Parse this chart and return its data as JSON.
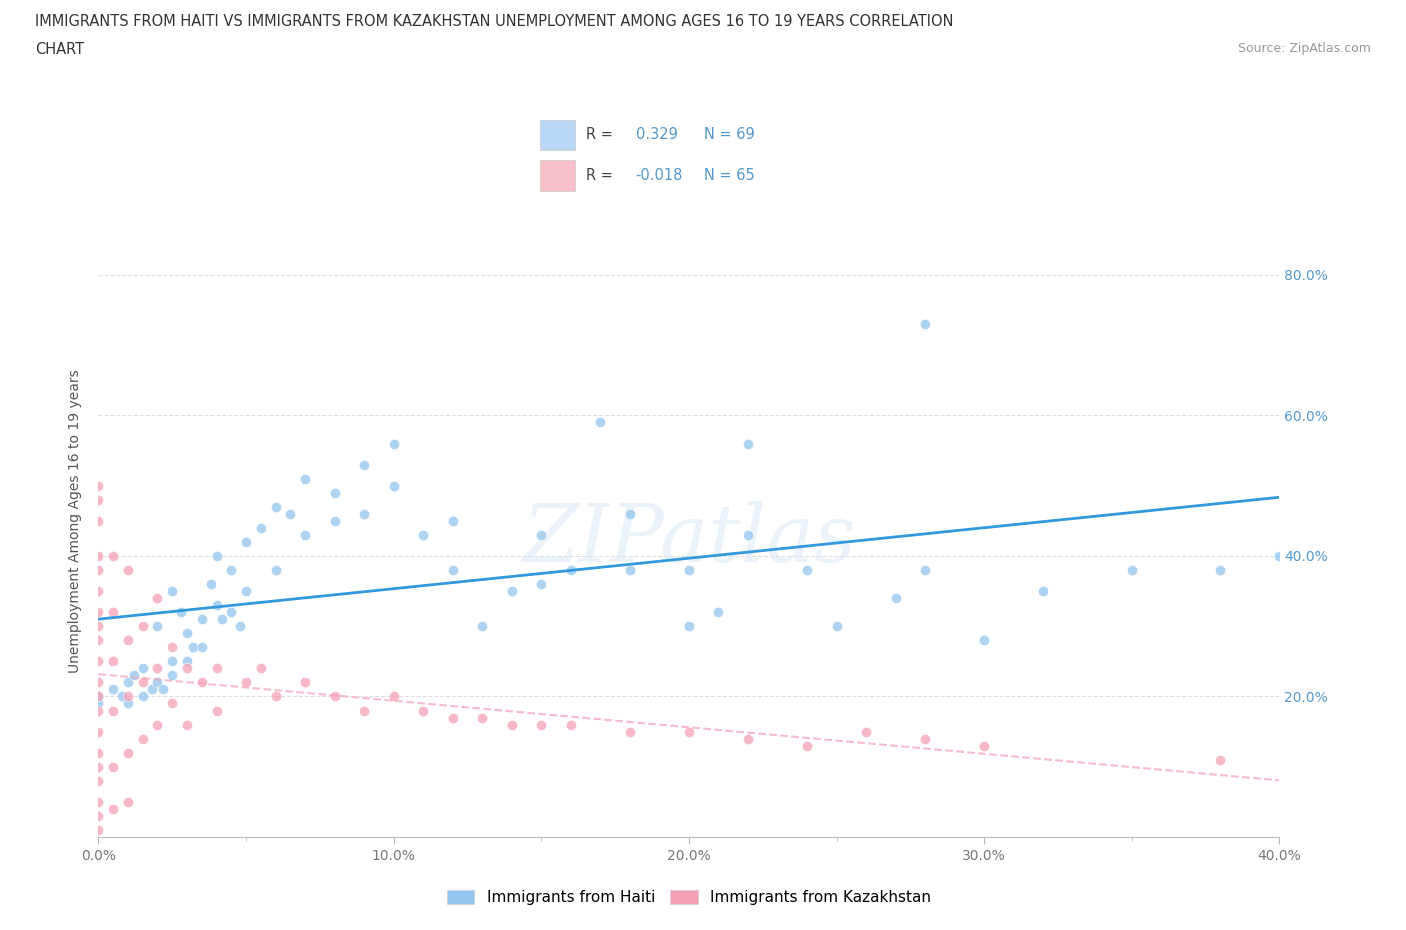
{
  "title_line1": "IMMIGRANTS FROM HAITI VS IMMIGRANTS FROM KAZAKHSTAN UNEMPLOYMENT AMONG AGES 16 TO 19 YEARS CORRELATION",
  "title_line2": "CHART",
  "source_text": "Source: ZipAtlas.com",
  "ylabel": "Unemployment Among Ages 16 to 19 years",
  "xlim": [
    0.0,
    0.4
  ],
  "ylim": [
    0.0,
    0.9
  ],
  "xtick_labels": [
    "0.0%",
    "",
    "10.0%",
    "",
    "20.0%",
    "",
    "30.0%",
    "",
    "40.0%"
  ],
  "xtick_values": [
    0.0,
    0.05,
    0.1,
    0.15,
    0.2,
    0.25,
    0.3,
    0.35,
    0.4
  ],
  "ytick_labels": [
    "20.0%",
    "40.0%",
    "60.0%",
    "80.0%"
  ],
  "ytick_values": [
    0.2,
    0.4,
    0.6,
    0.8
  ],
  "R_haiti": 0.329,
  "N_haiti": 69,
  "R_kazakhstan": -0.018,
  "N_kazakhstan": 65,
  "haiti_color": "#92c5f0",
  "kazakhstan_color": "#f4a0b5",
  "haiti_line_color": "#3399dd",
  "kazakhstan_line_color": "#f4a0b5",
  "background_color": "#ffffff",
  "grid_color": "#dddddd",
  "watermark_text": "ZIPatlas",
  "legend_box_haiti_color": "#b8d8f5",
  "legend_box_kazakhstan_color": "#f9c0cc",
  "right_tick_color": "#5599cc",
  "haiti_scatter": [
    [
      0.0,
      0.2
    ],
    [
      0.0,
      0.19
    ],
    [
      0.005,
      0.21
    ],
    [
      0.008,
      0.2
    ],
    [
      0.01,
      0.22
    ],
    [
      0.01,
      0.19
    ],
    [
      0.012,
      0.23
    ],
    [
      0.015,
      0.24
    ],
    [
      0.015,
      0.2
    ],
    [
      0.018,
      0.21
    ],
    [
      0.02,
      0.3
    ],
    [
      0.02,
      0.22
    ],
    [
      0.022,
      0.21
    ],
    [
      0.025,
      0.35
    ],
    [
      0.025,
      0.25
    ],
    [
      0.025,
      0.23
    ],
    [
      0.028,
      0.32
    ],
    [
      0.03,
      0.29
    ],
    [
      0.03,
      0.25
    ],
    [
      0.032,
      0.27
    ],
    [
      0.035,
      0.31
    ],
    [
      0.035,
      0.27
    ],
    [
      0.038,
      0.36
    ],
    [
      0.04,
      0.4
    ],
    [
      0.04,
      0.33
    ],
    [
      0.042,
      0.31
    ],
    [
      0.045,
      0.38
    ],
    [
      0.045,
      0.32
    ],
    [
      0.048,
      0.3
    ],
    [
      0.05,
      0.42
    ],
    [
      0.05,
      0.35
    ],
    [
      0.055,
      0.44
    ],
    [
      0.06,
      0.47
    ],
    [
      0.06,
      0.38
    ],
    [
      0.065,
      0.46
    ],
    [
      0.07,
      0.51
    ],
    [
      0.07,
      0.43
    ],
    [
      0.08,
      0.49
    ],
    [
      0.08,
      0.45
    ],
    [
      0.09,
      0.53
    ],
    [
      0.09,
      0.46
    ],
    [
      0.1,
      0.56
    ],
    [
      0.1,
      0.5
    ],
    [
      0.11,
      0.43
    ],
    [
      0.12,
      0.45
    ],
    [
      0.12,
      0.38
    ],
    [
      0.13,
      0.3
    ],
    [
      0.14,
      0.35
    ],
    [
      0.15,
      0.43
    ],
    [
      0.15,
      0.36
    ],
    [
      0.16,
      0.38
    ],
    [
      0.17,
      0.59
    ],
    [
      0.18,
      0.46
    ],
    [
      0.18,
      0.38
    ],
    [
      0.2,
      0.38
    ],
    [
      0.2,
      0.3
    ],
    [
      0.21,
      0.32
    ],
    [
      0.22,
      0.56
    ],
    [
      0.22,
      0.43
    ],
    [
      0.24,
      0.38
    ],
    [
      0.25,
      0.3
    ],
    [
      0.27,
      0.34
    ],
    [
      0.28,
      0.73
    ],
    [
      0.28,
      0.38
    ],
    [
      0.3,
      0.28
    ],
    [
      0.32,
      0.35
    ],
    [
      0.35,
      0.38
    ],
    [
      0.38,
      0.38
    ],
    [
      0.4,
      0.4
    ]
  ],
  "kazakhstan_scatter": [
    [
      0.0,
      0.5
    ],
    [
      0.0,
      0.48
    ],
    [
      0.0,
      0.45
    ],
    [
      0.0,
      0.4
    ],
    [
      0.0,
      0.38
    ],
    [
      0.0,
      0.35
    ],
    [
      0.0,
      0.32
    ],
    [
      0.0,
      0.3
    ],
    [
      0.0,
      0.28
    ],
    [
      0.0,
      0.25
    ],
    [
      0.0,
      0.22
    ],
    [
      0.0,
      0.2
    ],
    [
      0.0,
      0.18
    ],
    [
      0.0,
      0.15
    ],
    [
      0.0,
      0.12
    ],
    [
      0.0,
      0.1
    ],
    [
      0.0,
      0.08
    ],
    [
      0.0,
      0.05
    ],
    [
      0.0,
      0.03
    ],
    [
      0.0,
      0.01
    ],
    [
      0.005,
      0.4
    ],
    [
      0.005,
      0.32
    ],
    [
      0.005,
      0.25
    ],
    [
      0.005,
      0.18
    ],
    [
      0.005,
      0.1
    ],
    [
      0.005,
      0.04
    ],
    [
      0.01,
      0.38
    ],
    [
      0.01,
      0.28
    ],
    [
      0.01,
      0.2
    ],
    [
      0.01,
      0.12
    ],
    [
      0.01,
      0.05
    ],
    [
      0.015,
      0.3
    ],
    [
      0.015,
      0.22
    ],
    [
      0.015,
      0.14
    ],
    [
      0.02,
      0.34
    ],
    [
      0.02,
      0.24
    ],
    [
      0.02,
      0.16
    ],
    [
      0.025,
      0.27
    ],
    [
      0.025,
      0.19
    ],
    [
      0.03,
      0.24
    ],
    [
      0.03,
      0.16
    ],
    [
      0.035,
      0.22
    ],
    [
      0.04,
      0.24
    ],
    [
      0.04,
      0.18
    ],
    [
      0.05,
      0.22
    ],
    [
      0.055,
      0.24
    ],
    [
      0.06,
      0.2
    ],
    [
      0.07,
      0.22
    ],
    [
      0.08,
      0.2
    ],
    [
      0.09,
      0.18
    ],
    [
      0.1,
      0.2
    ],
    [
      0.11,
      0.18
    ],
    [
      0.12,
      0.17
    ],
    [
      0.13,
      0.17
    ],
    [
      0.14,
      0.16
    ],
    [
      0.15,
      0.16
    ],
    [
      0.16,
      0.16
    ],
    [
      0.18,
      0.15
    ],
    [
      0.2,
      0.15
    ],
    [
      0.22,
      0.14
    ],
    [
      0.24,
      0.13
    ],
    [
      0.26,
      0.15
    ],
    [
      0.28,
      0.14
    ],
    [
      0.3,
      0.13
    ],
    [
      0.38,
      0.11
    ]
  ]
}
